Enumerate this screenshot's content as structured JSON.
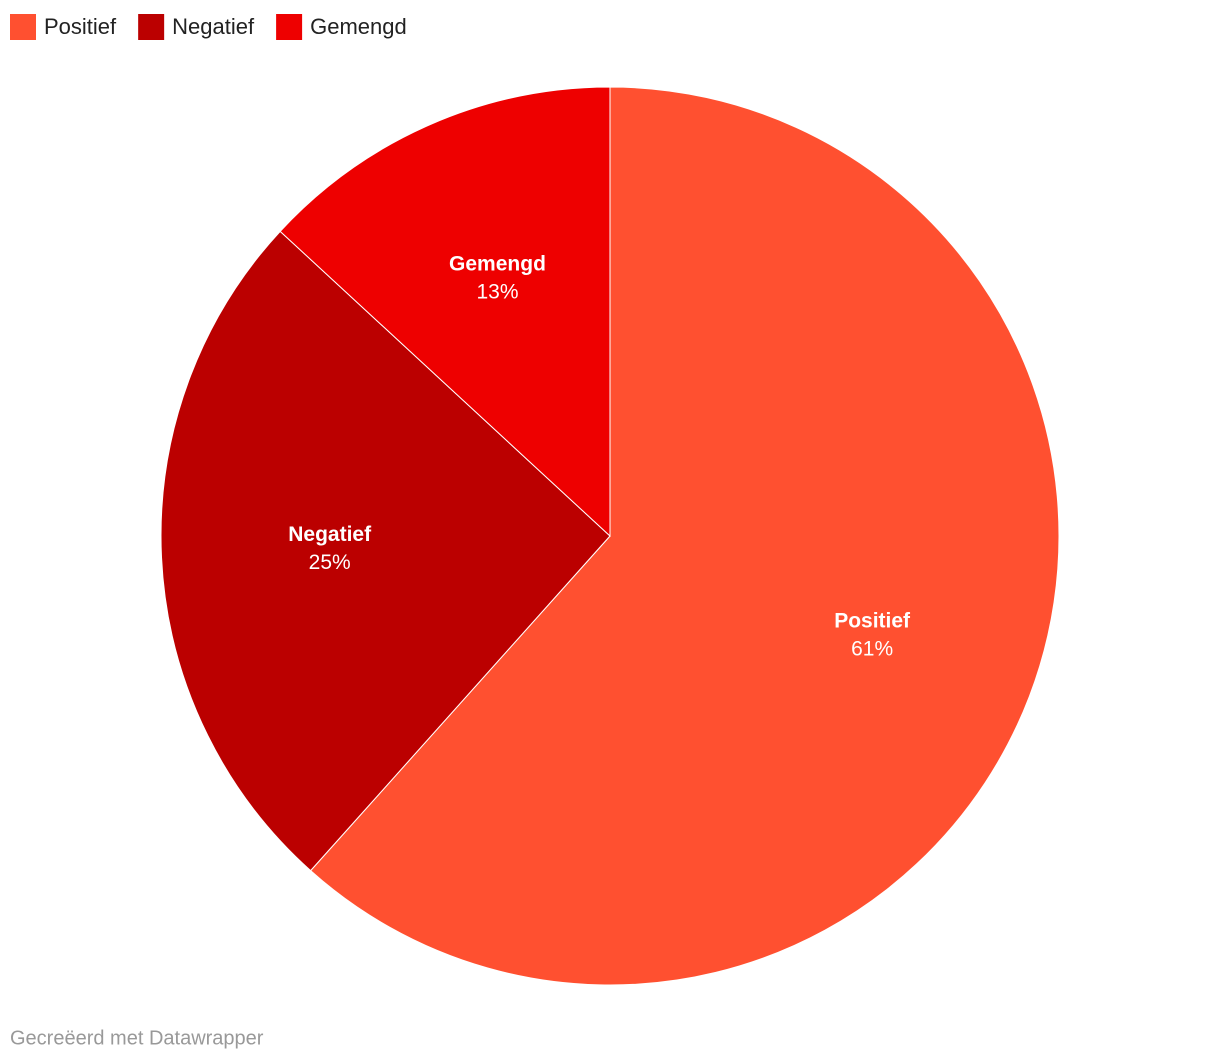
{
  "chart_data": {
    "type": "pie",
    "categories": [
      "Positief",
      "Negatief",
      "Gemengd"
    ],
    "values": [
      61,
      25,
      13
    ],
    "value_labels": [
      "61%",
      "25%",
      "13%"
    ],
    "colors": [
      "#ff5030",
      "#bb0000",
      "#ee0000"
    ],
    "legend": "top-left",
    "footer": "Gecreëerd met Datawrapper"
  }
}
